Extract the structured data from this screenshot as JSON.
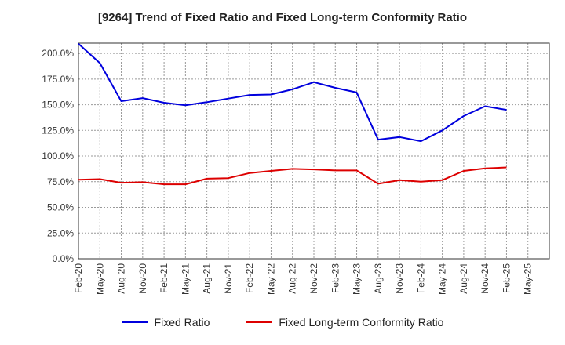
{
  "chart_data": {
    "type": "line",
    "title": "[9264]  Trend of Fixed Ratio and Fixed Long-term Conformity Ratio",
    "xlabel": "",
    "ylabel": "",
    "ylim": [
      0,
      210
    ],
    "y_ticks": [
      "0.0%",
      "25.0%",
      "50.0%",
      "75.0%",
      "100.0%",
      "125.0%",
      "150.0%",
      "175.0%",
      "200.0%"
    ],
    "x_tick_labels": [
      "Feb-20",
      "May-20",
      "Aug-20",
      "Nov-20",
      "Feb-21",
      "May-21",
      "Aug-21",
      "Nov-21",
      "Feb-22",
      "May-22",
      "Aug-22",
      "Nov-22",
      "Feb-23",
      "May-23",
      "Aug-23",
      "Nov-23",
      "Feb-24",
      "May-24",
      "Aug-24",
      "Nov-24",
      "Feb-25",
      "May-25"
    ],
    "grid": true,
    "legend_position": "bottom",
    "series": [
      {
        "name": "Fixed Ratio",
        "color": "#0000dd",
        "values": [
          209.5,
          190.5,
          153.5,
          156.5,
          152.0,
          149.5,
          152.5,
          156.0,
          159.5,
          160.0,
          165.0,
          172.0,
          166.5,
          162.0,
          116.0,
          118.5,
          114.5,
          125.0,
          139.0,
          148.5,
          145.0
        ]
      },
      {
        "name": "Fixed Long-term Conformity Ratio",
        "color": "#dd0000",
        "values": [
          77.0,
          77.5,
          74.0,
          74.5,
          72.5,
          72.5,
          78.0,
          78.5,
          83.5,
          85.5,
          87.5,
          87.0,
          86.0,
          86.0,
          73.0,
          76.5,
          75.0,
          76.5,
          85.5,
          88.0,
          89.0
        ]
      }
    ]
  }
}
